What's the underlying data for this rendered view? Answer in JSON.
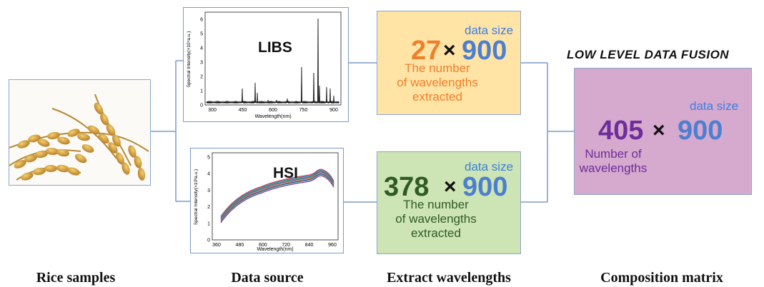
{
  "captions": {
    "rice": "Rice samples",
    "source": "Data source",
    "extract": "Extract wavelengths",
    "composition": "Composition matrix"
  },
  "libs_chart": {
    "title": "LIBS",
    "ylabel": "Spectral Intensity(×10⁴a.u.)",
    "xlabel": "Wavelength(nm)",
    "xticks": [
      "300",
      "450",
      "600",
      "750",
      "900"
    ],
    "yticks": [
      "0",
      "1",
      "2",
      "3",
      "4",
      "5",
      "6"
    ]
  },
  "hsi_chart": {
    "title": "HSI",
    "ylabel": "Spectral Intensity(×10³a.u.)",
    "xlabel": "Wavelength(nm)",
    "xticks": [
      "360",
      "480",
      "600",
      "720",
      "840",
      "960"
    ],
    "yticks": [
      "0",
      "1",
      "2",
      "3",
      "4",
      "5"
    ]
  },
  "extract_libs": {
    "count": "27",
    "times": "×",
    "size": "900",
    "size_label": "data size",
    "desc": "The number\nof wavelengths\nextracted",
    "count_color": "#f07f2a",
    "size_color": "#4d7fcf"
  },
  "extract_hsi": {
    "count": "378",
    "times": "×",
    "size": "900",
    "size_label": "data size",
    "desc": "The number\nof wavelengths\nextracted",
    "count_color": "#2f5b25",
    "size_color": "#4d7fcf"
  },
  "fusion": {
    "title": "LOW LEVEL DATA FUSION",
    "count": "405",
    "times": "×",
    "size": "900",
    "size_label": "data size",
    "desc": "Number of\nwavelengths",
    "count_color": "#6f2d9a",
    "size_color": "#4d7fcf"
  }
}
